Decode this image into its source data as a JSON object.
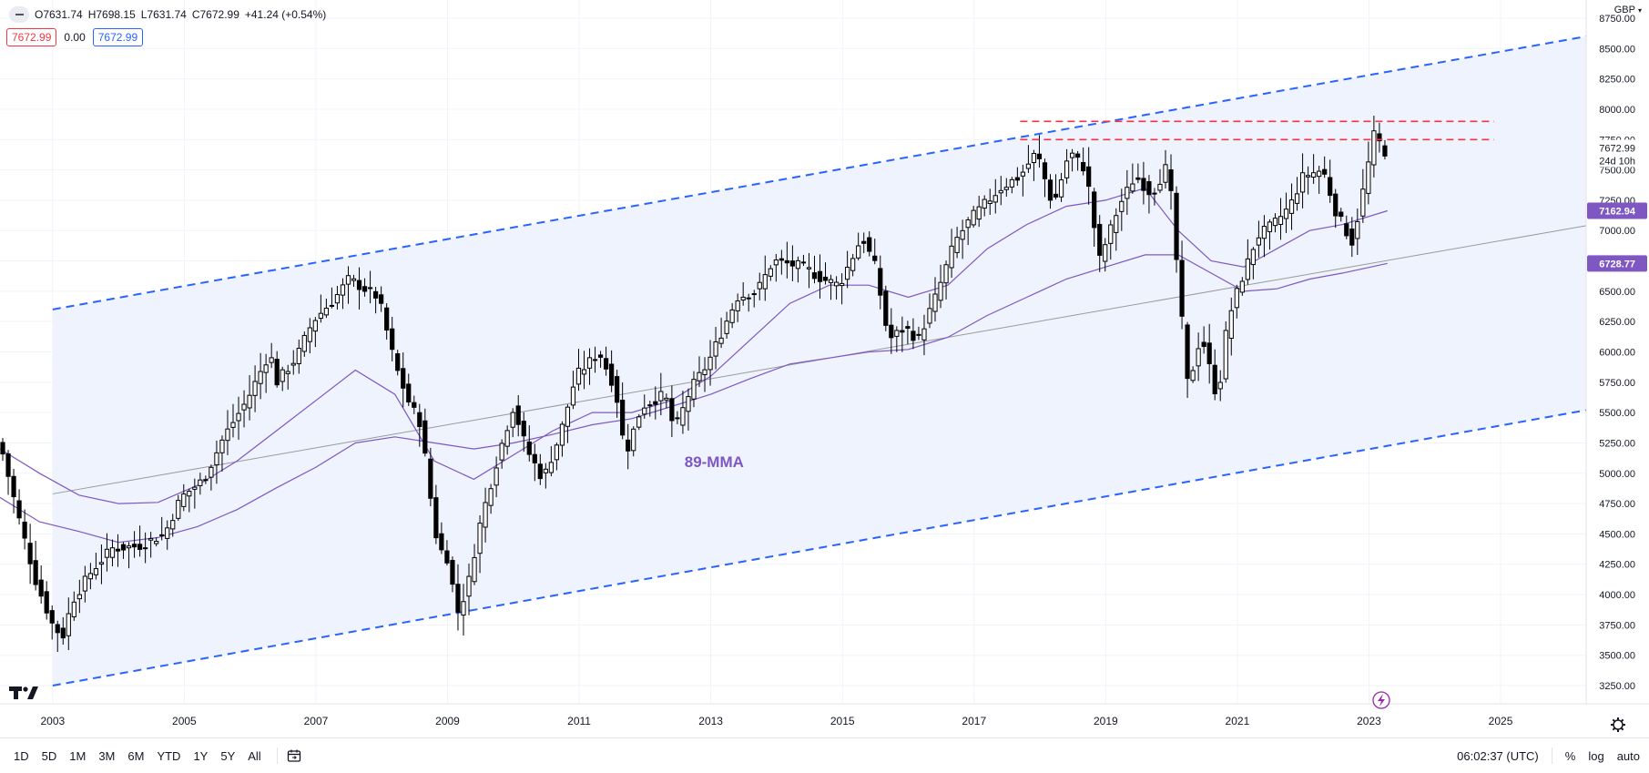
{
  "header": {
    "open": "O7631.74",
    "high": "H7698.15",
    "low": "L7631.74",
    "close": "C7672.99",
    "change": "+41.24 (+0.54%)",
    "bid": "7672.99",
    "spread": "0.00",
    "ask": "7672.99",
    "currency": "GBP"
  },
  "price_axis": {
    "last_price": "7672.99",
    "countdown": "24d 10h",
    "ma_short_value": "7162.94",
    "ma_long_value": "6728.77"
  },
  "annotations": {
    "ma_label": "89-MMA"
  },
  "bottom_bar": {
    "ranges": [
      "1D",
      "5D",
      "1M",
      "3M",
      "6M",
      "YTD",
      "1Y",
      "5Y",
      "All"
    ],
    "time": "06:02:37 (UTC)",
    "percent": "%",
    "log": "log",
    "auto": "auto"
  },
  "colors": {
    "up": "#ffffff",
    "down": "#000000",
    "channel": "#2962ff",
    "channel_fill": "#eef3fd",
    "resistance": "#f23645",
    "ma": "#7e57c2",
    "regression": "#9a9a9a"
  },
  "icons": [
    "collapse-icon",
    "calendar-icon",
    "settings-gear-icon",
    "lightning-icon",
    "tradingview-logo"
  ],
  "chart_data": {
    "type": "candlestick",
    "interval": "1M",
    "x_tick_labels": [
      "2003",
      "2005",
      "2007",
      "2009",
      "2011",
      "2013",
      "2015",
      "2017",
      "2019",
      "2021",
      "2023",
      "2025"
    ],
    "y_tick_labels": [
      "3250.00",
      "3500.00",
      "3750.00",
      "4000.00",
      "4250.00",
      "4500.00",
      "4750.00",
      "5000.00",
      "5250.00",
      "5500.00",
      "5750.00",
      "6000.00",
      "6250.00",
      "6500.00",
      "6750.00",
      "7000.00",
      "7250.00",
      "7500.00",
      "7750.00",
      "8000.00",
      "8250.00",
      "8500.00",
      "8750.00"
    ],
    "ylim": [
      3100,
      8900
    ],
    "xlim": [
      2002.2,
      2026.3
    ],
    "close_path": [
      [
        2002.2,
        5250
      ],
      [
        2002.5,
        4600
      ],
      [
        2002.75,
        4100
      ],
      [
        2003.0,
        3750
      ],
      [
        2003.15,
        3650
      ],
      [
        2003.3,
        3950
      ],
      [
        2003.6,
        4200
      ],
      [
        2003.9,
        4380
      ],
      [
        2004.3,
        4400
      ],
      [
        2004.7,
        4500
      ],
      [
        2004.95,
        4800
      ],
      [
        2005.3,
        4950
      ],
      [
        2005.6,
        5300
      ],
      [
        2005.95,
        5600
      ],
      [
        2006.3,
        6000
      ],
      [
        2006.4,
        5750
      ],
      [
        2006.7,
        5950
      ],
      [
        2006.95,
        6250
      ],
      [
        2007.3,
        6450
      ],
      [
        2007.5,
        6600
      ],
      [
        2007.8,
        6500
      ],
      [
        2007.95,
        6450
      ],
      [
        2008.2,
        5900
      ],
      [
        2008.4,
        5600
      ],
      [
        2008.6,
        5400
      ],
      [
        2008.7,
        4950
      ],
      [
        2008.85,
        4400
      ],
      [
        2009.0,
        4300
      ],
      [
        2009.15,
        3850
      ],
      [
        2009.3,
        4050
      ],
      [
        2009.5,
        4600
      ],
      [
        2009.8,
        5200
      ],
      [
        2010.0,
        5550
      ],
      [
        2010.2,
        5200
      ],
      [
        2010.45,
        4950
      ],
      [
        2010.7,
        5300
      ],
      [
        2010.95,
        5800
      ],
      [
        2011.3,
        6000
      ],
      [
        2011.55,
        5700
      ],
      [
        2011.7,
        5150
      ],
      [
        2011.95,
        5550
      ],
      [
        2012.3,
        5650
      ],
      [
        2012.45,
        5350
      ],
      [
        2012.7,
        5700
      ],
      [
        2012.95,
        5900
      ],
      [
        2013.4,
        6450
      ],
      [
        2013.7,
        6500
      ],
      [
        2013.95,
        6750
      ],
      [
        2014.4,
        6700
      ],
      [
        2014.7,
        6600
      ],
      [
        2014.95,
        6550
      ],
      [
        2015.3,
        6950
      ],
      [
        2015.5,
        6700
      ],
      [
        2015.7,
        6100
      ],
      [
        2015.95,
        6200
      ],
      [
        2016.15,
        6100
      ],
      [
        2016.45,
        6500
      ],
      [
        2016.7,
        6900
      ],
      [
        2016.95,
        7100
      ],
      [
        2017.4,
        7350
      ],
      [
        2017.7,
        7450
      ],
      [
        2017.95,
        7650
      ],
      [
        2018.2,
        7200
      ],
      [
        2018.45,
        7650
      ],
      [
        2018.7,
        7500
      ],
      [
        2018.9,
        6750
      ],
      [
        2019.2,
        7200
      ],
      [
        2019.45,
        7450
      ],
      [
        2019.7,
        7300
      ],
      [
        2019.95,
        7550
      ],
      [
        2020.1,
        6600
      ],
      [
        2020.25,
        5700
      ],
      [
        2020.45,
        6150
      ],
      [
        2020.7,
        5600
      ],
      [
        2020.85,
        6250
      ],
      [
        2021.0,
        6500
      ],
      [
        2021.3,
        6950
      ],
      [
        2021.55,
        7050
      ],
      [
        2021.8,
        7200
      ],
      [
        2022.0,
        7450
      ],
      [
        2022.3,
        7500
      ],
      [
        2022.5,
        7150
      ],
      [
        2022.75,
        6900
      ],
      [
        2022.9,
        7300
      ],
      [
        2023.1,
        7850
      ],
      [
        2023.2,
        7630
      ],
      [
        2023.28,
        7673
      ]
    ],
    "ma_short_path": [
      [
        2002.2,
        5200
      ],
      [
        2002.8,
        5000
      ],
      [
        2003.4,
        4820
      ],
      [
        2004.0,
        4750
      ],
      [
        2004.6,
        4760
      ],
      [
        2005.2,
        4900
      ],
      [
        2005.8,
        5100
      ],
      [
        2006.4,
        5350
      ],
      [
        2007.0,
        5600
      ],
      [
        2007.6,
        5850
      ],
      [
        2008.2,
        5650
      ],
      [
        2008.8,
        5100
      ],
      [
        2009.4,
        4950
      ],
      [
        2010.0,
        5150
      ],
      [
        2010.6,
        5350
      ],
      [
        2011.2,
        5500
      ],
      [
        2011.8,
        5500
      ],
      [
        2012.4,
        5600
      ],
      [
        2013.0,
        5800
      ],
      [
        2013.6,
        6100
      ],
      [
        2014.2,
        6400
      ],
      [
        2014.8,
        6550
      ],
      [
        2015.4,
        6550
      ],
      [
        2016.0,
        6450
      ],
      [
        2016.6,
        6550
      ],
      [
        2017.2,
        6850
      ],
      [
        2017.8,
        7050
      ],
      [
        2018.4,
        7200
      ],
      [
        2019.0,
        7250
      ],
      [
        2019.6,
        7350
      ],
      [
        2020.1,
        7000
      ],
      [
        2020.6,
        6750
      ],
      [
        2021.1,
        6700
      ],
      [
        2021.6,
        6850
      ],
      [
        2022.1,
        7000
      ],
      [
        2022.6,
        7050
      ],
      [
        2023.28,
        7163
      ]
    ],
    "ma_long_path": [
      [
        2002.2,
        4800
      ],
      [
        2002.8,
        4600
      ],
      [
        2003.4,
        4520
      ],
      [
        2004.0,
        4430
      ],
      [
        2004.6,
        4470
      ],
      [
        2005.2,
        4560
      ],
      [
        2005.8,
        4700
      ],
      [
        2006.4,
        4880
      ],
      [
        2007.0,
        5050
      ],
      [
        2007.6,
        5250
      ],
      [
        2008.2,
        5300
      ],
      [
        2008.8,
        5250
      ],
      [
        2009.4,
        5200
      ],
      [
        2010.0,
        5250
      ],
      [
        2010.6,
        5320
      ],
      [
        2011.2,
        5400
      ],
      [
        2011.8,
        5450
      ],
      [
        2012.4,
        5550
      ],
      [
        2013.0,
        5650
      ],
      [
        2013.6,
        5780
      ],
      [
        2014.2,
        5900
      ],
      [
        2014.8,
        5950
      ],
      [
        2015.4,
        6000
      ],
      [
        2016.0,
        6020
      ],
      [
        2016.6,
        6120
      ],
      [
        2017.2,
        6300
      ],
      [
        2017.8,
        6450
      ],
      [
        2018.4,
        6600
      ],
      [
        2019.0,
        6700
      ],
      [
        2019.6,
        6800
      ],
      [
        2020.1,
        6800
      ],
      [
        2020.6,
        6650
      ],
      [
        2021.1,
        6500
      ],
      [
        2021.6,
        6520
      ],
      [
        2022.1,
        6600
      ],
      [
        2022.6,
        6650
      ],
      [
        2023.28,
        6729
      ]
    ],
    "channel_upper": [
      [
        2003.0,
        6350
      ],
      [
        2026.3,
        8600
      ]
    ],
    "channel_lower": [
      [
        2003.0,
        3250
      ],
      [
        2026.3,
        5520
      ]
    ],
    "regression_line": [
      [
        2003.0,
        4830
      ],
      [
        2026.3,
        7040
      ]
    ],
    "resistance_levels": [
      {
        "value": 7900,
        "from": 2017.7,
        "to": 2024.9
      },
      {
        "value": 7750,
        "from": 2017.7,
        "to": 2024.9
      }
    ],
    "ma_label_point": [
      2012.6,
      5050
    ]
  }
}
